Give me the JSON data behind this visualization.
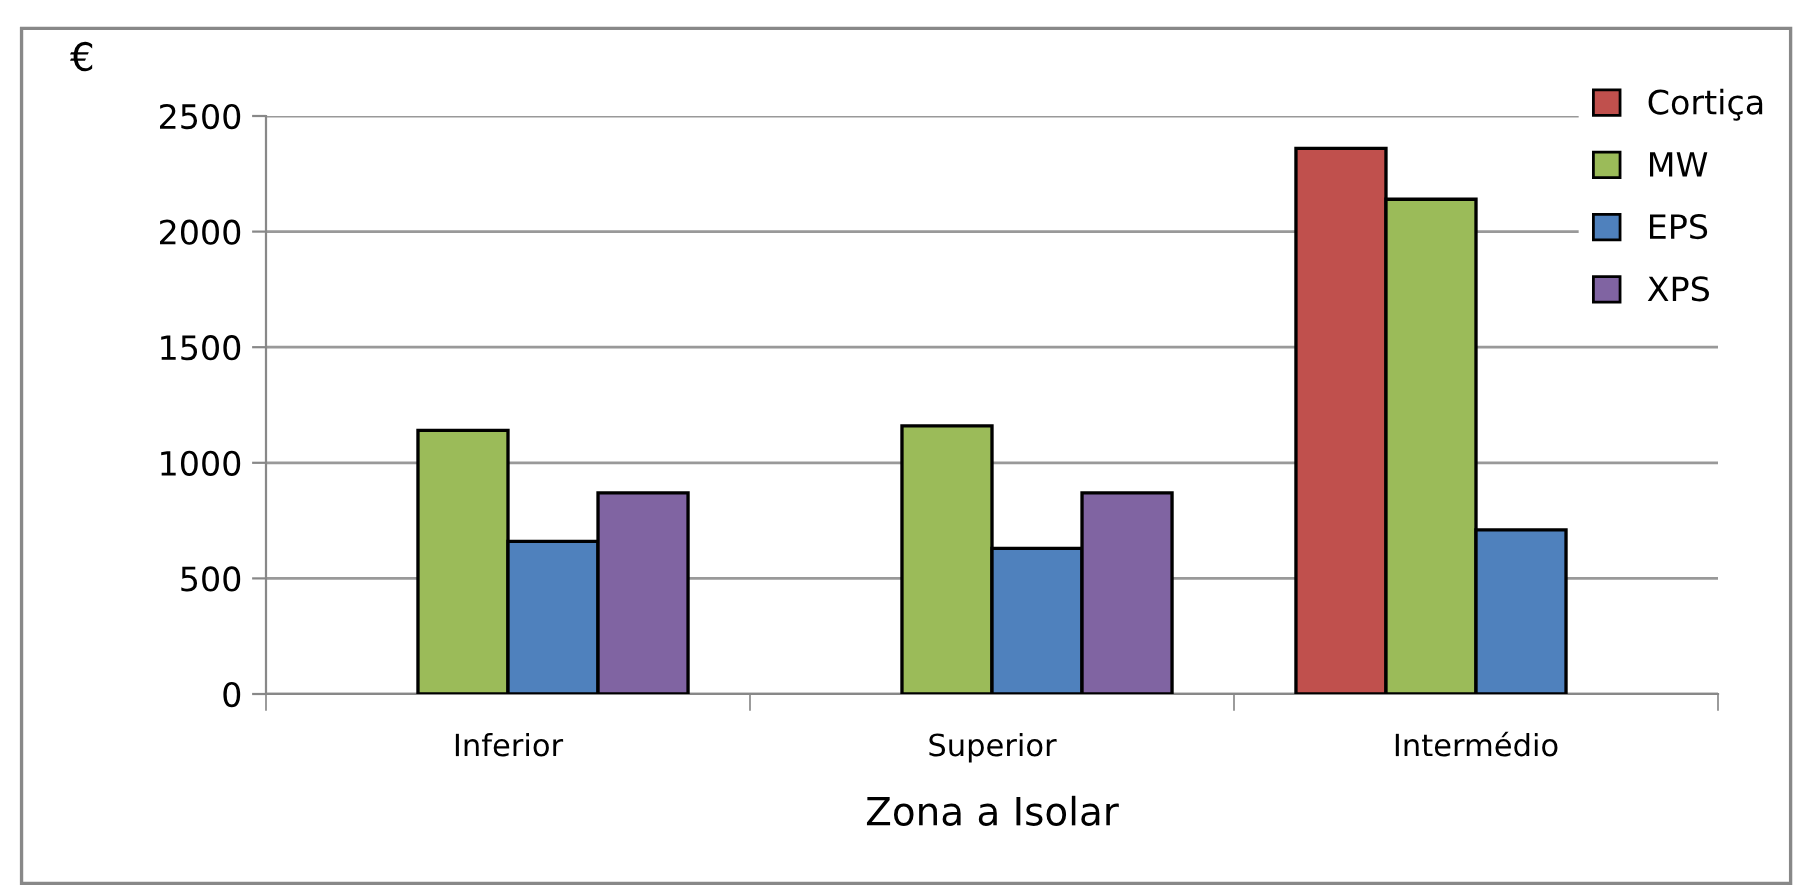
{
  "chart_data": {
    "type": "bar",
    "xlabel": "Zona a Isolar",
    "ylabel": "€",
    "categories": [
      "Inferior",
      "Superior",
      "Intermédio"
    ],
    "series": [
      {
        "name": "Cortiça",
        "color": "#c0504d",
        "values": [
          null,
          null,
          2360
        ]
      },
      {
        "name": "MW",
        "color": "#9bbb59",
        "values": [
          1140,
          1160,
          2140
        ]
      },
      {
        "name": "EPS",
        "color": "#4f81bd",
        "values": [
          660,
          630,
          710
        ]
      },
      {
        "name": "XPS",
        "color": "#8064a2",
        "values": [
          870,
          870,
          null
        ]
      }
    ],
    "ylim": [
      0,
      2500
    ],
    "yticks": [
      0,
      500,
      1000,
      1500,
      2000,
      2500
    ],
    "grid": "y",
    "legend": "top right"
  }
}
